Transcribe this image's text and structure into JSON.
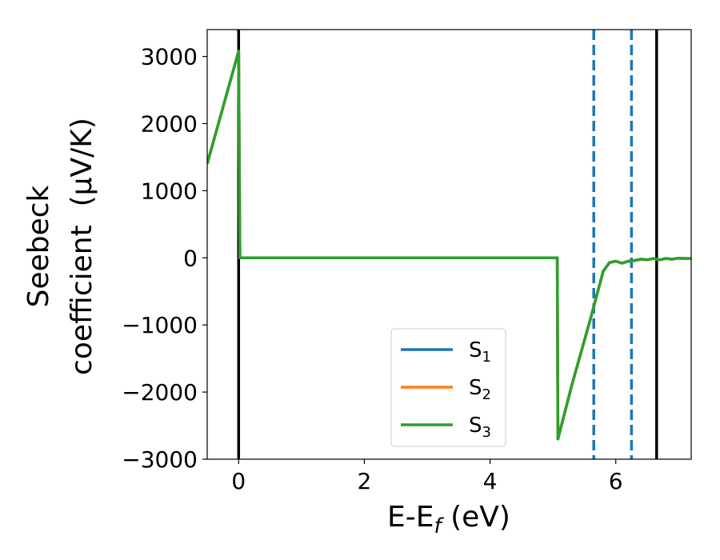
{
  "chart_data": {
    "type": "line",
    "xlabel": "E-E",
    "xlabel_sub": "f",
    "xlabel_unit": " (eV)",
    "ylabel_line1": "Seebeck",
    "ylabel_line2": "coefficient  (μV/K)",
    "xlim": [
      -0.5,
      7.2
    ],
    "ylim": [
      -3000,
      3400
    ],
    "xticks": [
      {
        "value": 0,
        "label": "0"
      },
      {
        "value": 2,
        "label": "2"
      },
      {
        "value": 4,
        "label": "4"
      },
      {
        "value": 6,
        "label": "6"
      }
    ],
    "yticks": [
      {
        "value": 3000,
        "label": "3000"
      },
      {
        "value": 2000,
        "label": "2000"
      },
      {
        "value": 1000,
        "label": "1000"
      },
      {
        "value": 0,
        "label": "0"
      },
      {
        "value": -1000,
        "label": "−1000"
      },
      {
        "value": -2000,
        "label": "−2000"
      },
      {
        "value": -3000,
        "label": "−3000"
      }
    ],
    "grid": false,
    "legend_position": "lower-center",
    "series": [
      {
        "name": "S",
        "sub": "1",
        "color": "#1f77b4"
      },
      {
        "name": "S",
        "sub": "2",
        "color": "#ff7f0e"
      },
      {
        "name": "S",
        "sub": "3",
        "color": "#2ca02c"
      }
    ],
    "curve": {
      "x": [
        -0.5,
        0.0,
        0.02,
        0.05,
        1.0,
        2.0,
        3.0,
        4.0,
        5.0,
        5.07,
        5.08,
        5.3,
        5.6,
        5.8,
        5.9,
        6.0,
        6.1,
        6.2,
        6.3,
        6.4,
        6.5,
        6.6,
        6.7,
        6.8,
        6.9,
        7.0,
        7.1,
        7.2
      ],
      "y": [
        1400,
        3080,
        0,
        0,
        0,
        0,
        0,
        0,
        0,
        0,
        -2700,
        -1900,
        -900,
        -200,
        -70,
        -50,
        -80,
        -50,
        -40,
        -20,
        -30,
        -10,
        -30,
        -10,
        -20,
        -5,
        -10,
        -10
      ]
    },
    "vlines_solid": [
      0.0,
      6.65
    ],
    "vlines_dashed": [
      5.65,
      6.25
    ],
    "vline_solid_color": "#000000",
    "vline_dashed_color": "#1f77b4"
  }
}
